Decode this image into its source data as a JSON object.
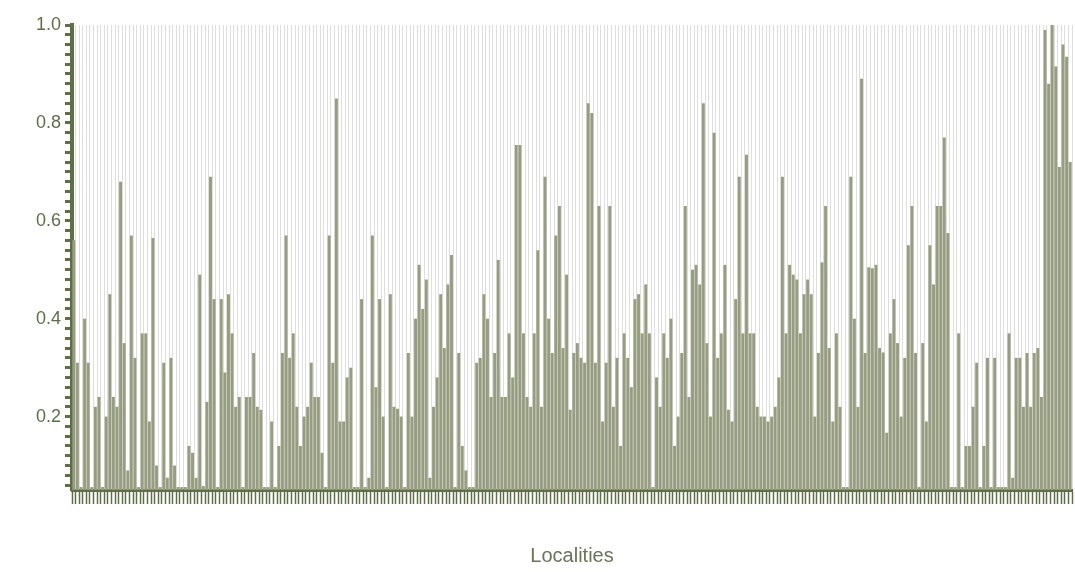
{
  "chart_data": {
    "type": "bar",
    "xlabel": "Localities",
    "color": "#979e80",
    "grid": "x",
    "ylim": [
      0.05,
      1.0
    ],
    "yticks": [
      {
        "value": 0.06,
        "label": null
      },
      {
        "value": 0.08,
        "label": null
      },
      {
        "value": 0.1,
        "label": null
      },
      {
        "value": 0.12,
        "label": null
      },
      {
        "value": 0.14,
        "label": null
      },
      {
        "value": 0.16,
        "label": null
      },
      {
        "value": 0.18,
        "label": null
      },
      0.2,
      {
        "value": 0.22,
        "label": null
      },
      {
        "value": 0.24,
        "label": null
      },
      {
        "value": 0.26,
        "label": null
      },
      {
        "value": 0.28,
        "label": null
      },
      {
        "value": 0.3,
        "label": null
      },
      {
        "value": 0.32,
        "label": null
      },
      {
        "value": 0.34,
        "label": null
      },
      {
        "value": 0.36,
        "label": null
      },
      {
        "value": 0.38,
        "label": null
      },
      0.4,
      {
        "value": 0.42,
        "label": null
      },
      {
        "value": 0.44,
        "label": null
      },
      {
        "value": 0.46,
        "label": null
      },
      {
        "value": 0.48,
        "label": null
      },
      {
        "value": 0.5,
        "label": null
      },
      {
        "value": 0.52,
        "label": null
      },
      {
        "value": 0.54,
        "label": null
      },
      {
        "value": 0.56,
        "label": null
      },
      {
        "value": 0.58,
        "label": null
      },
      0.6,
      {
        "value": 0.62,
        "label": null
      },
      {
        "value": 0.64,
        "label": null
      },
      {
        "value": 0.66,
        "label": null
      },
      {
        "value": 0.68,
        "label": null
      },
      {
        "value": 0.7,
        "label": null
      },
      {
        "value": 0.72,
        "label": null
      },
      {
        "value": 0.74,
        "label": null
      },
      {
        "value": 0.76,
        "label": null
      },
      {
        "value": 0.78,
        "label": null
      },
      0.8,
      {
        "value": 0.82,
        "label": null
      },
      {
        "value": 0.84,
        "label": null
      },
      {
        "value": 0.86,
        "label": null
      },
      {
        "value": 0.88,
        "label": null
      },
      {
        "value": 0.9,
        "label": null
      },
      {
        "value": 0.92,
        "label": null
      },
      {
        "value": 0.94,
        "label": null
      },
      {
        "value": 0.96,
        "label": null
      },
      {
        "value": 0.98,
        "label": null
      },
      {
        "value": 1.0,
        "label": "1.0"
      }
    ],
    "values": [
      0.56,
      0.31,
      0.056,
      0.4,
      0.31,
      0.056,
      0.22,
      0.24,
      0.056,
      0.2,
      0.45,
      0.24,
      0.22,
      0.68,
      0.35,
      0.09,
      0.57,
      0.32,
      0.056,
      0.37,
      0.37,
      0.19,
      0.565,
      0.1,
      0.056,
      0.31,
      0.075,
      0.32,
      0.1,
      0.056,
      0.056,
      0.056,
      0.14,
      0.126,
      0.075,
      0.49,
      0.058,
      0.23,
      0.69,
      0.44,
      0.056,
      0.44,
      0.29,
      0.45,
      0.37,
      0.22,
      0.24,
      0.056,
      0.24,
      0.24,
      0.33,
      0.22,
      0.214,
      0.056,
      0.056,
      0.19,
      0.056,
      0.14,
      0.33,
      0.57,
      0.32,
      0.37,
      0.22,
      0.14,
      0.2,
      0.22,
      0.31,
      0.24,
      0.24,
      0.126,
      0.056,
      0.57,
      0.31,
      0.85,
      0.19,
      0.19,
      0.28,
      0.3,
      0.056,
      0.056,
      0.44,
      0.056,
      0.075,
      0.57,
      0.26,
      0.44,
      0.2,
      0.056,
      0.45,
      0.22,
      0.216,
      0.2,
      0.056,
      0.33,
      0.2,
      0.4,
      0.51,
      0.42,
      0.48,
      0.075,
      0.22,
      0.28,
      0.45,
      0.34,
      0.47,
      0.53,
      0.056,
      0.33,
      0.14,
      0.09,
      0.056,
      0.056,
      0.31,
      0.32,
      0.45,
      0.4,
      0.24,
      0.33,
      0.52,
      0.24,
      0.24,
      0.37,
      0.28,
      0.755,
      0.755,
      0.37,
      0.24,
      0.22,
      0.37,
      0.54,
      0.22,
      0.69,
      0.4,
      0.33,
      0.57,
      0.63,
      0.34,
      0.49,
      0.214,
      0.33,
      0.35,
      0.32,
      0.31,
      0.84,
      0.82,
      0.31,
      0.63,
      0.19,
      0.31,
      0.63,
      0.22,
      0.32,
      0.14,
      0.37,
      0.32,
      0.26,
      0.44,
      0.45,
      0.37,
      0.47,
      0.37,
      0.056,
      0.28,
      0.22,
      0.37,
      0.32,
      0.4,
      0.14,
      0.2,
      0.33,
      0.63,
      0.24,
      0.5,
      0.51,
      0.47,
      0.84,
      0.35,
      0.2,
      0.78,
      0.32,
      0.37,
      0.51,
      0.214,
      0.19,
      0.44,
      0.69,
      0.37,
      0.735,
      0.37,
      0.37,
      0.22,
      0.2,
      0.2,
      0.19,
      0.2,
      0.22,
      0.28,
      0.69,
      0.37,
      0.51,
      0.49,
      0.48,
      0.37,
      0.45,
      0.48,
      0.45,
      0.2,
      0.33,
      0.515,
      0.63,
      0.34,
      0.19,
      0.37,
      0.22,
      0.056,
      0.056,
      0.69,
      0.4,
      0.22,
      0.89,
      0.33,
      0.505,
      0.503,
      0.51,
      0.34,
      0.331,
      0.167,
      0.37,
      0.44,
      0.35,
      0.2,
      0.32,
      0.55,
      0.63,
      0.33,
      0.056,
      0.35,
      0.19,
      0.55,
      0.47,
      0.63,
      0.63,
      0.77,
      0.575,
      0.056,
      0.056,
      0.37,
      0.056,
      0.14,
      0.14,
      0.22,
      0.31,
      0.056,
      0.14,
      0.32,
      0.056,
      0.32,
      0.056,
      0.056,
      0.056,
      0.37,
      0.075,
      0.32,
      0.32,
      0.22,
      0.33,
      0.22,
      0.33,
      0.34,
      0.24,
      0.99,
      0.88,
      1.0,
      0.915,
      0.71,
      0.96,
      0.935,
      0.72
    ],
    "categories": [
      null,
      null,
      null,
      null,
      null,
      null,
      null,
      null,
      null,
      null,
      null,
      null,
      null,
      null,
      null,
      null,
      null,
      null,
      null,
      null,
      null,
      null,
      null,
      null,
      null,
      null,
      null,
      null,
      null,
      null,
      null,
      null,
      null,
      null,
      null,
      null,
      null,
      null,
      null,
      null,
      null,
      null,
      null,
      null,
      null,
      null,
      null,
      null,
      null,
      null,
      null,
      null,
      null,
      null,
      null,
      null,
      null,
      null,
      null,
      null,
      null,
      null,
      null,
      null,
      null,
      null,
      null,
      null,
      null,
      null,
      null,
      null,
      null,
      null,
      null,
      null,
      null,
      null,
      null,
      null,
      null,
      null,
      null,
      null,
      null,
      null,
      null,
      null,
      null,
      null,
      null,
      null,
      null,
      null,
      null,
      null,
      null,
      null,
      null,
      null,
      null,
      null,
      null,
      null,
      null,
      null,
      null,
      null,
      null,
      null,
      null,
      null,
      null,
      null,
      null,
      null,
      null,
      null,
      null,
      null,
      null,
      null,
      null,
      null,
      null,
      null,
      null,
      null,
      null,
      null,
      null,
      null,
      null,
      null,
      null,
      null,
      null,
      null,
      null,
      null,
      null,
      null,
      null,
      null,
      null,
      null,
      null,
      null,
      null,
      null,
      null,
      null,
      null,
      null,
      null,
      null,
      null,
      null,
      null,
      null,
      null,
      null,
      null,
      null,
      null,
      null,
      null,
      null,
      null,
      null,
      null,
      null,
      null,
      null,
      null,
      null,
      null,
      null,
      null,
      null,
      null,
      null,
      null,
      null,
      null,
      null,
      null,
      null,
      null,
      null,
      null,
      null,
      null,
      null,
      null,
      null,
      null,
      null,
      null,
      null,
      null,
      null,
      null,
      null,
      null,
      null,
      null,
      null,
      null,
      null,
      null,
      null,
      null,
      null,
      null,
      null,
      null,
      null,
      null,
      null,
      null,
      null,
      null,
      null,
      null,
      null,
      null,
      null,
      null,
      null,
      null,
      null,
      null,
      null,
      null,
      null,
      null,
      null,
      null,
      null,
      null,
      null,
      null,
      null,
      null,
      null,
      null,
      null,
      null,
      null,
      null,
      null,
      null,
      null,
      null,
      null,
      null,
      null,
      null,
      null,
      null,
      null,
      null,
      null,
      null,
      null,
      null,
      null,
      null,
      null,
      null,
      null,
      null,
      null,
      null,
      null,
      null,
      null
    ]
  }
}
